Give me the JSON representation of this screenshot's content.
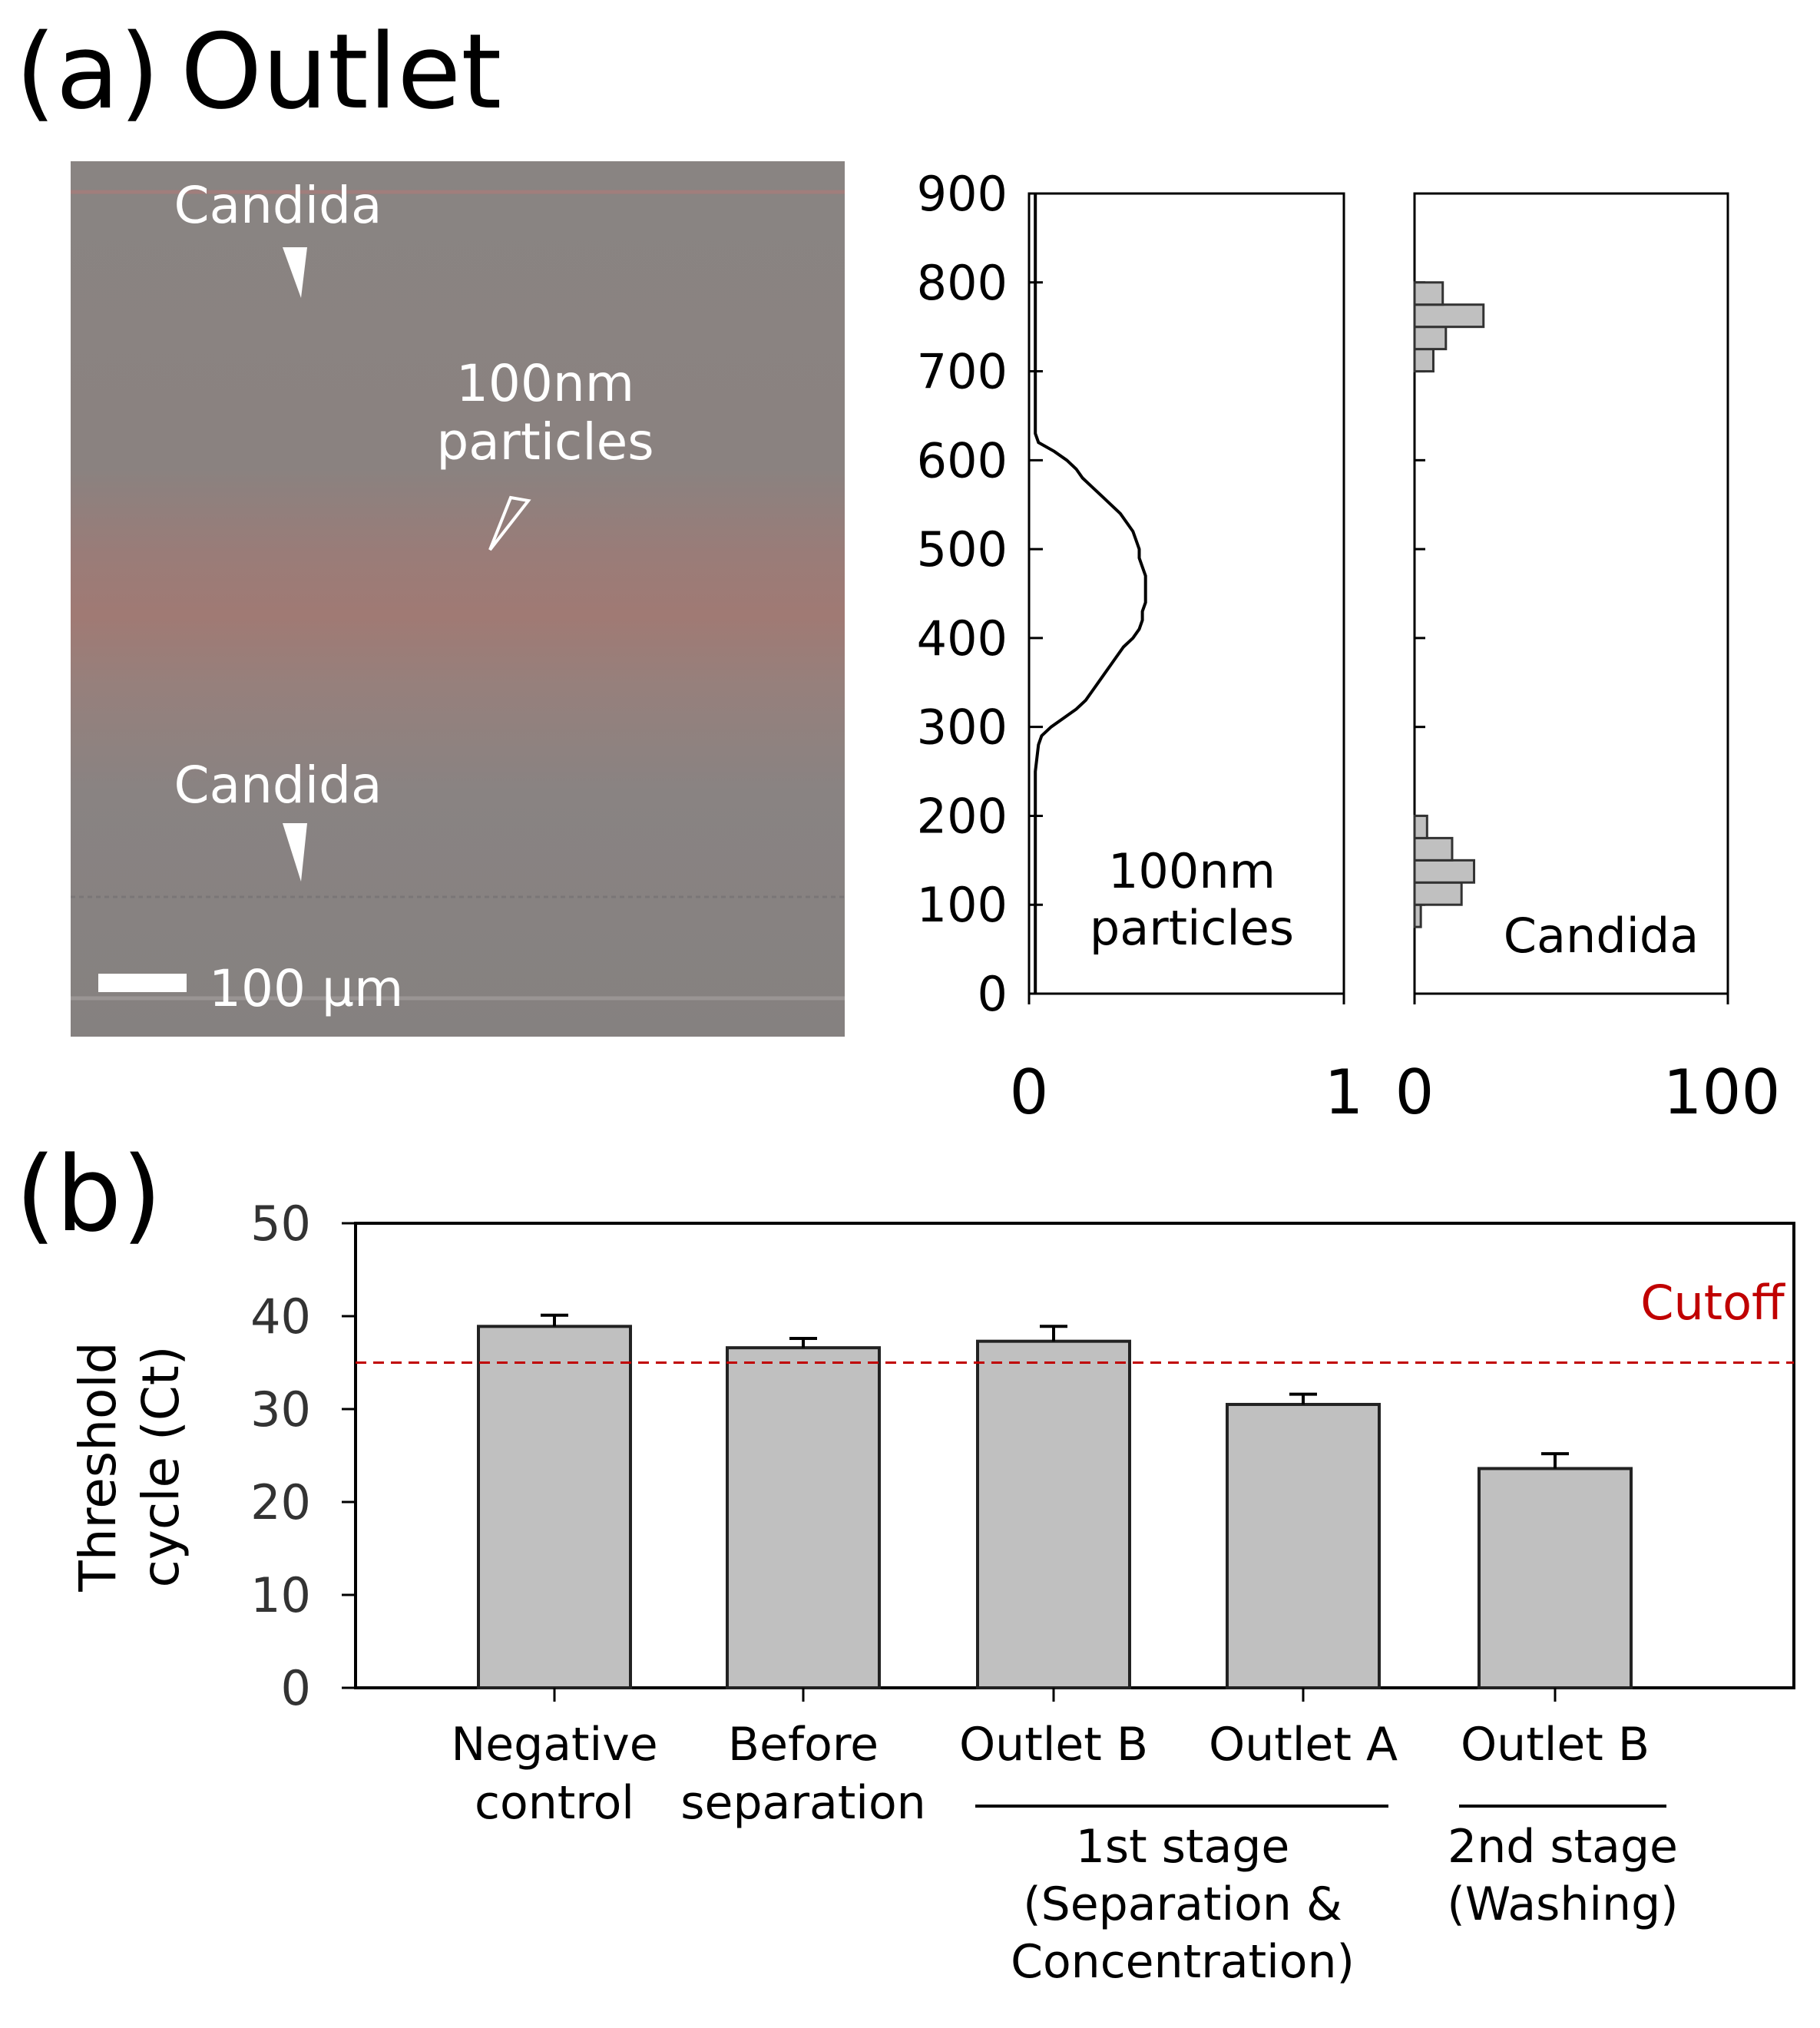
{
  "panel_a": {
    "label": "(a)",
    "title": "Outlet",
    "micrograph": {
      "label_top": "Candida",
      "label_mid_line1": "100nm",
      "label_mid_line2": "particles",
      "label_bottom": "Candida",
      "scale_bar_text": "100 µm"
    }
  },
  "panel_b": {
    "label": "(b)"
  },
  "chart_data": [
    {
      "type": "line",
      "orientation": "vertical",
      "ylim": [
        0,
        900
      ],
      "xlim": [
        0,
        1
      ],
      "y_ticks": [
        0,
        100,
        200,
        300,
        400,
        500,
        600,
        700,
        800,
        900
      ],
      "x_tick_labels": [
        "0",
        "1"
      ],
      "annotation_line1": "100nm",
      "annotation_line2": "particles",
      "colors": {
        "line": "#000000"
      },
      "profile": [
        [
          0,
          0.02
        ],
        [
          50,
          0.02
        ],
        [
          100,
          0.02
        ],
        [
          150,
          0.02
        ],
        [
          200,
          0.02
        ],
        [
          250,
          0.02
        ],
        [
          280,
          0.03
        ],
        [
          290,
          0.04
        ],
        [
          300,
          0.07
        ],
        [
          310,
          0.11
        ],
        [
          320,
          0.15
        ],
        [
          330,
          0.18
        ],
        [
          340,
          0.2
        ],
        [
          350,
          0.22
        ],
        [
          360,
          0.24
        ],
        [
          370,
          0.26
        ],
        [
          380,
          0.28
        ],
        [
          390,
          0.3
        ],
        [
          400,
          0.33
        ],
        [
          410,
          0.35
        ],
        [
          420,
          0.36
        ],
        [
          430,
          0.36
        ],
        [
          440,
          0.37
        ],
        [
          450,
          0.37
        ],
        [
          460,
          0.37
        ],
        [
          470,
          0.37
        ],
        [
          480,
          0.36
        ],
        [
          490,
          0.35
        ],
        [
          500,
          0.35
        ],
        [
          510,
          0.34
        ],
        [
          520,
          0.33
        ],
        [
          530,
          0.31
        ],
        [
          540,
          0.29
        ],
        [
          550,
          0.26
        ],
        [
          560,
          0.23
        ],
        [
          570,
          0.2
        ],
        [
          580,
          0.17
        ],
        [
          590,
          0.15
        ],
        [
          600,
          0.12
        ],
        [
          610,
          0.08
        ],
        [
          620,
          0.03
        ],
        [
          630,
          0.02
        ],
        [
          650,
          0.02
        ],
        [
          700,
          0.02
        ],
        [
          750,
          0.02
        ],
        [
          800,
          0.02
        ],
        [
          850,
          0.02
        ],
        [
          900,
          0.02
        ]
      ]
    },
    {
      "type": "bar",
      "orientation": "horizontal",
      "ylim": [
        0,
        900
      ],
      "xlim": [
        0,
        100
      ],
      "x_tick_labels": [
        "0",
        "100"
      ],
      "annotation": "Candida",
      "colors": {
        "bar": "#c0c0c0",
        "stroke": "#333333"
      },
      "bins": [
        {
          "y0": 75,
          "y1": 100,
          "value": 2
        },
        {
          "y0": 100,
          "y1": 125,
          "value": 15
        },
        {
          "y0": 125,
          "y1": 150,
          "value": 19
        },
        {
          "y0": 150,
          "y1": 175,
          "value": 12
        },
        {
          "y0": 175,
          "y1": 200,
          "value": 4
        },
        {
          "y0": 700,
          "y1": 725,
          "value": 6
        },
        {
          "y0": 725,
          "y1": 750,
          "value": 10
        },
        {
          "y0": 750,
          "y1": 775,
          "value": 22
        },
        {
          "y0": 775,
          "y1": 800,
          "value": 9
        }
      ]
    },
    {
      "type": "bar",
      "ylabel_line1": "Threshold",
      "ylabel_line2": "cycle (Ct)",
      "ylim": [
        0,
        50
      ],
      "y_ticks": [
        0,
        10,
        20,
        30,
        40,
        50
      ],
      "categories": [
        {
          "line1": "Negative",
          "line2": "control"
        },
        {
          "line1": "Before",
          "line2": "separation"
        },
        {
          "line1": "Outlet B",
          "line2": ""
        },
        {
          "line1": "Outlet A",
          "line2": ""
        },
        {
          "line1": "Outlet B",
          "line2": ""
        }
      ],
      "values": [
        38.9,
        36.6,
        37.3,
        30.5,
        23.6
      ],
      "errors": [
        1.2,
        1.0,
        1.6,
        1.1,
        1.6
      ],
      "cutoff": {
        "value": 35,
        "label": "Cutoff",
        "color": "#c00000"
      },
      "groups": [
        {
          "line1": "1st stage",
          "line2": "(Separation &",
          "line3": "Concentration)"
        },
        {
          "line1": "2nd stage",
          "line2": "(Washing)"
        }
      ],
      "colors": {
        "bar": "#c0c0c0",
        "stroke": "#222222",
        "axis_ticks": "#333333"
      }
    }
  ]
}
